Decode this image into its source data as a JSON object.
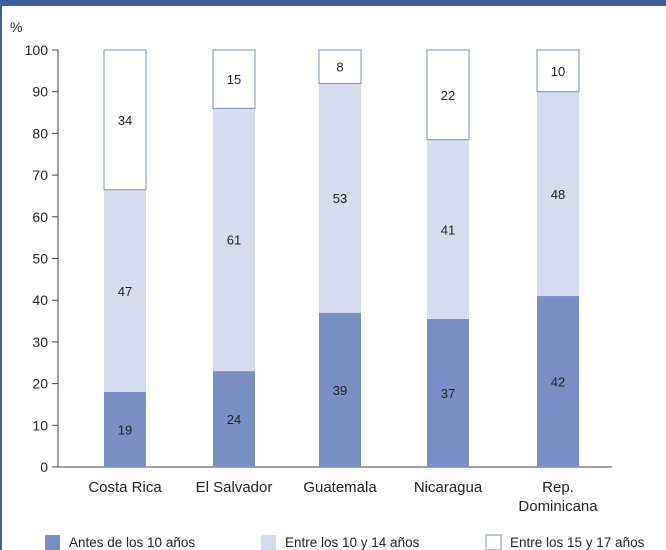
{
  "chart_data": {
    "type": "bar",
    "stacked": true,
    "title": "",
    "xlabel": "",
    "ylabel": "%",
    "ylim": [
      0,
      100
    ],
    "yticks": [
      0,
      10,
      20,
      30,
      40,
      50,
      60,
      70,
      80,
      90,
      100
    ],
    "grid": false,
    "legend_position": "bottom",
    "categories": [
      [
        "Costa Rica"
      ],
      [
        "El Salvador"
      ],
      [
        "Guatemala"
      ],
      [
        "Nicaragua"
      ],
      [
        "Rep.",
        "Dominicana"
      ]
    ],
    "series": [
      {
        "name": "Antes de los 10 años",
        "color": "#7a8fc3",
        "values": [
          19,
          24,
          39,
          37,
          42
        ],
        "display": [
          18,
          23,
          37,
          35.5,
          41
        ]
      },
      {
        "name": "Entre los 10 y 14 años",
        "color": "#d5dcec",
        "values": [
          47,
          61,
          53,
          41,
          48
        ],
        "display": [
          48.5,
          63,
          55,
          43,
          49
        ]
      },
      {
        "name": "Entre los 15 y 17 años",
        "color": "#ffffff",
        "values": [
          34,
          15,
          8,
          22,
          10
        ],
        "display": [
          33.5,
          14,
          8,
          21.5,
          10
        ]
      }
    ]
  }
}
